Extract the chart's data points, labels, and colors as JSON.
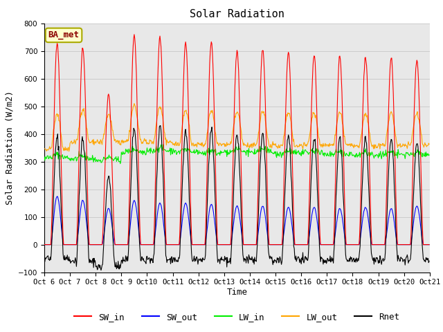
{
  "title": "Solar Radiation",
  "ylabel": "Solar Radiation (W/m2)",
  "xlabel": "Time",
  "ylim": [
    -100,
    800
  ],
  "start_day": 6,
  "n_days": 15,
  "dt": 0.5,
  "SW_in_color": "red",
  "SW_out_color": "blue",
  "LW_in_color": "#00ee00",
  "LW_out_color": "orange",
  "Rnet_color": "black",
  "legend_labels": [
    "SW_in",
    "SW_out",
    "LW_in",
    "LW_out",
    "Rnet"
  ],
  "annotation_text": "BA_met",
  "annotation_bg": "#ffffcc",
  "annotation_border": "#cccc00",
  "grid_color": "#cccccc",
  "bg_color": "#e8e8e8",
  "font_family": "DejaVu Sans Mono",
  "tick_label_fontsize": 7.5,
  "axis_label_fontsize": 9,
  "title_fontsize": 11,
  "peak_heights_SW": [
    730,
    710,
    540,
    760,
    750,
    730,
    730,
    700,
    710,
    695,
    685,
    680,
    680,
    675,
    670
  ],
  "peak_heights_SW_out": [
    175,
    160,
    130,
    160,
    150,
    150,
    145,
    140,
    140,
    135,
    135,
    130,
    135,
    130,
    140
  ],
  "LW_out_base": [
    345,
    370,
    370,
    375,
    370,
    360,
    360,
    360,
    360,
    355,
    360,
    360,
    355,
    360,
    360
  ],
  "LW_in_base": [
    315,
    310,
    305,
    335,
    340,
    335,
    330,
    335,
    335,
    330,
    330,
    325,
    325,
    325,
    325
  ],
  "night_rnet": [
    -50,
    -60,
    -80,
    -55,
    -55,
    -55,
    -55,
    -55,
    -55,
    -55,
    -55,
    -55,
    -55,
    -55,
    -55
  ]
}
